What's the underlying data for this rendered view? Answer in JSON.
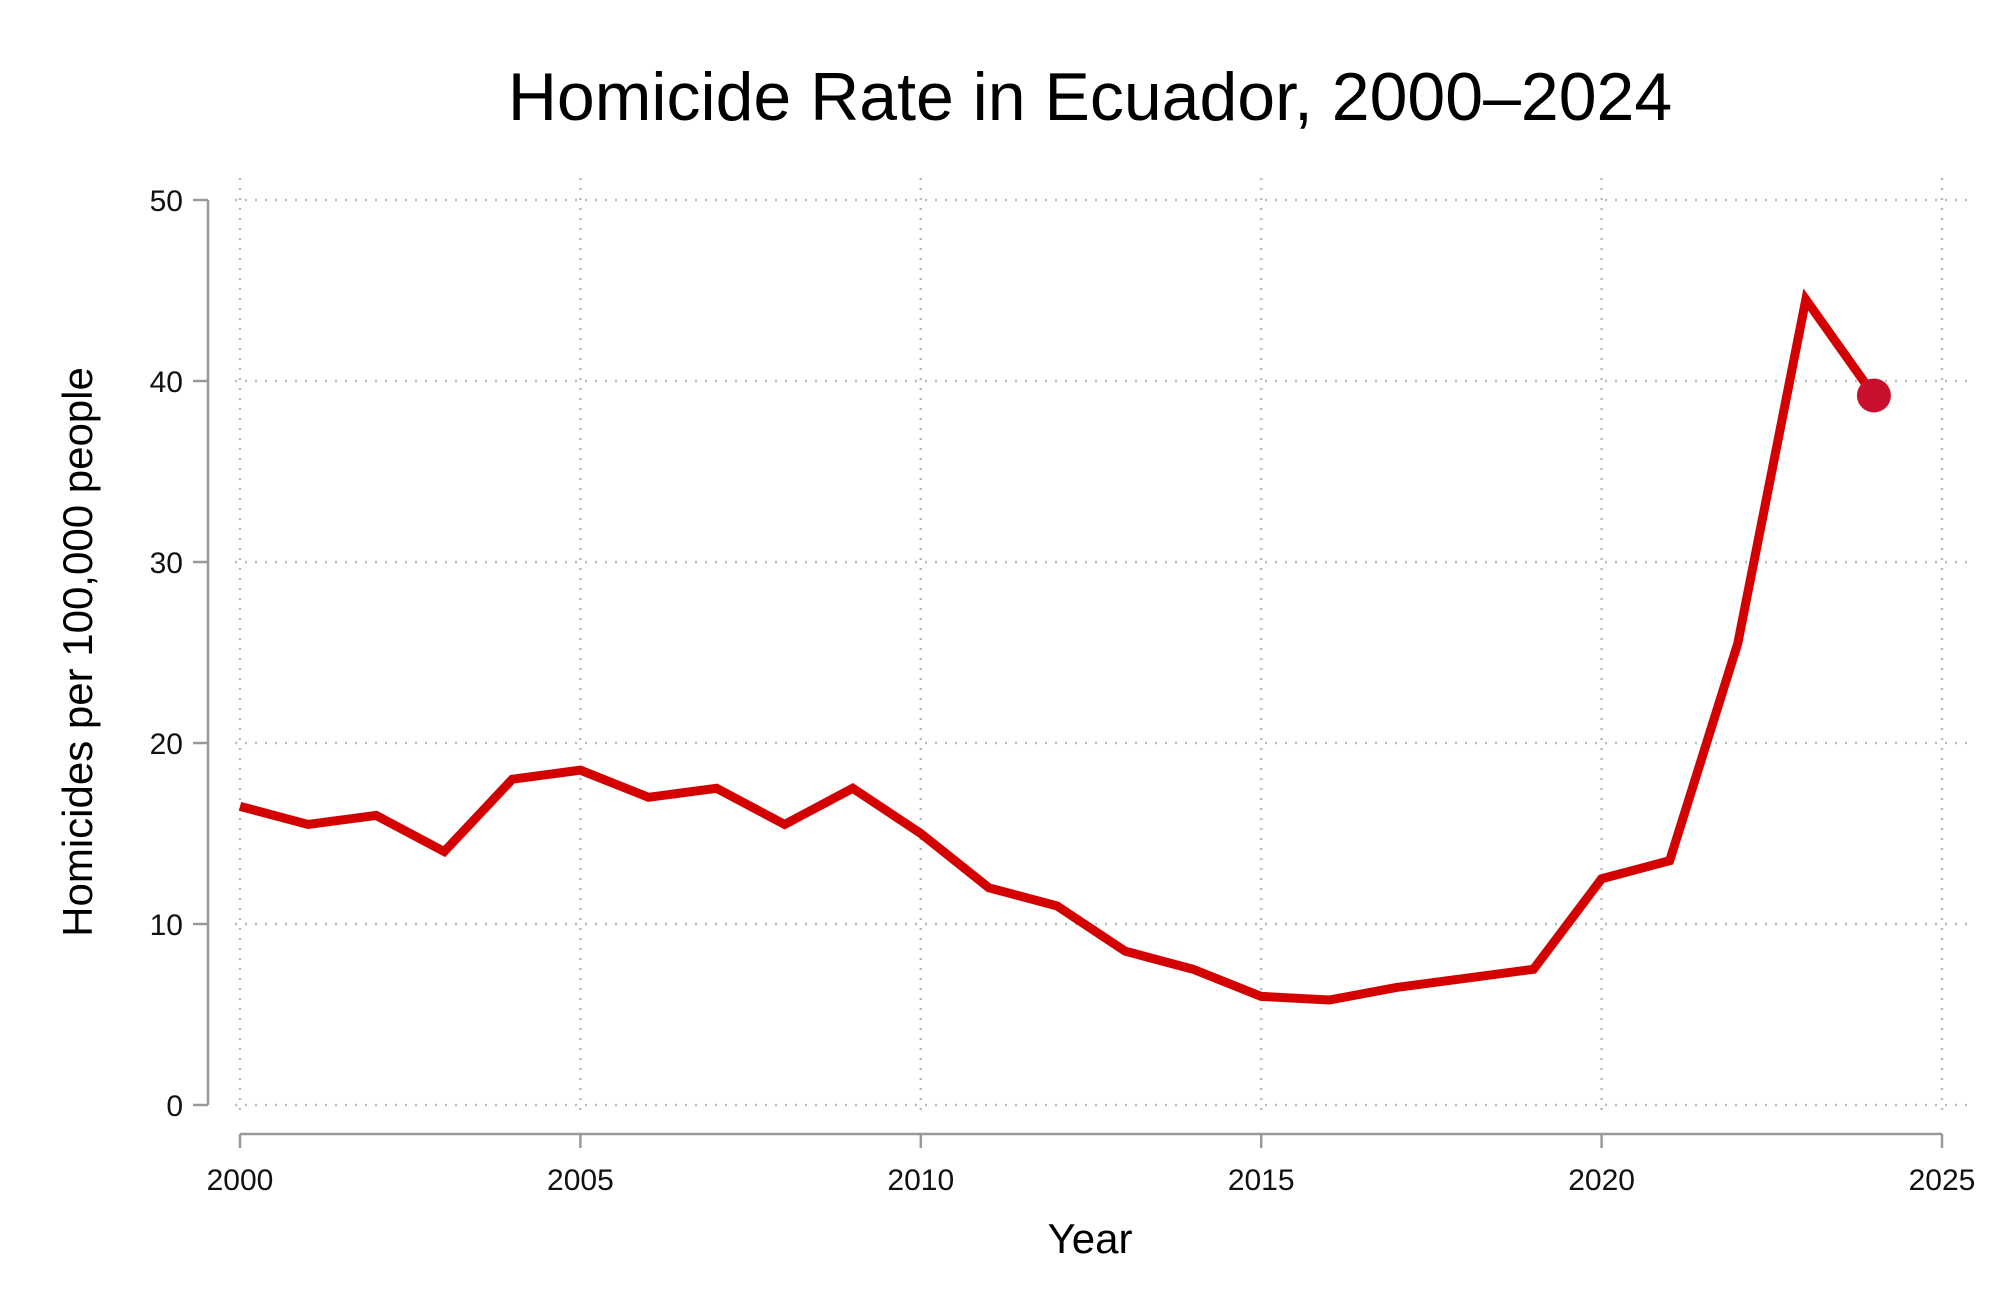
{
  "chart_data": {
    "type": "line",
    "title": "Homicide Rate in Ecuador, 2000–2024",
    "xlabel": "Year",
    "ylabel": "Homicides per 100,000 people",
    "xlim": [
      2000,
      2025
    ],
    "ylim": [
      0,
      50
    ],
    "xticks": [
      2000,
      2005,
      2010,
      2015,
      2020,
      2025
    ],
    "yticks": [
      0,
      10,
      20,
      30,
      40,
      50
    ],
    "grid": true,
    "line_color": "#d40000",
    "end_marker_color": "#c8102e",
    "series": [
      {
        "name": "Homicide rate",
        "x": [
          2000,
          2001,
          2002,
          2003,
          2004,
          2005,
          2006,
          2007,
          2008,
          2009,
          2010,
          2011,
          2012,
          2013,
          2014,
          2015,
          2016,
          2017,
          2018,
          2019,
          2020,
          2021,
          2022,
          2023,
          2024
        ],
        "y": [
          16.5,
          15.5,
          16.0,
          14.0,
          18.0,
          18.5,
          17.0,
          17.5,
          15.5,
          17.5,
          15.0,
          12.0,
          11.0,
          8.5,
          7.5,
          6.0,
          5.8,
          6.5,
          7.0,
          7.5,
          12.5,
          13.5,
          25.5,
          44.5,
          39.2
        ]
      }
    ]
  }
}
